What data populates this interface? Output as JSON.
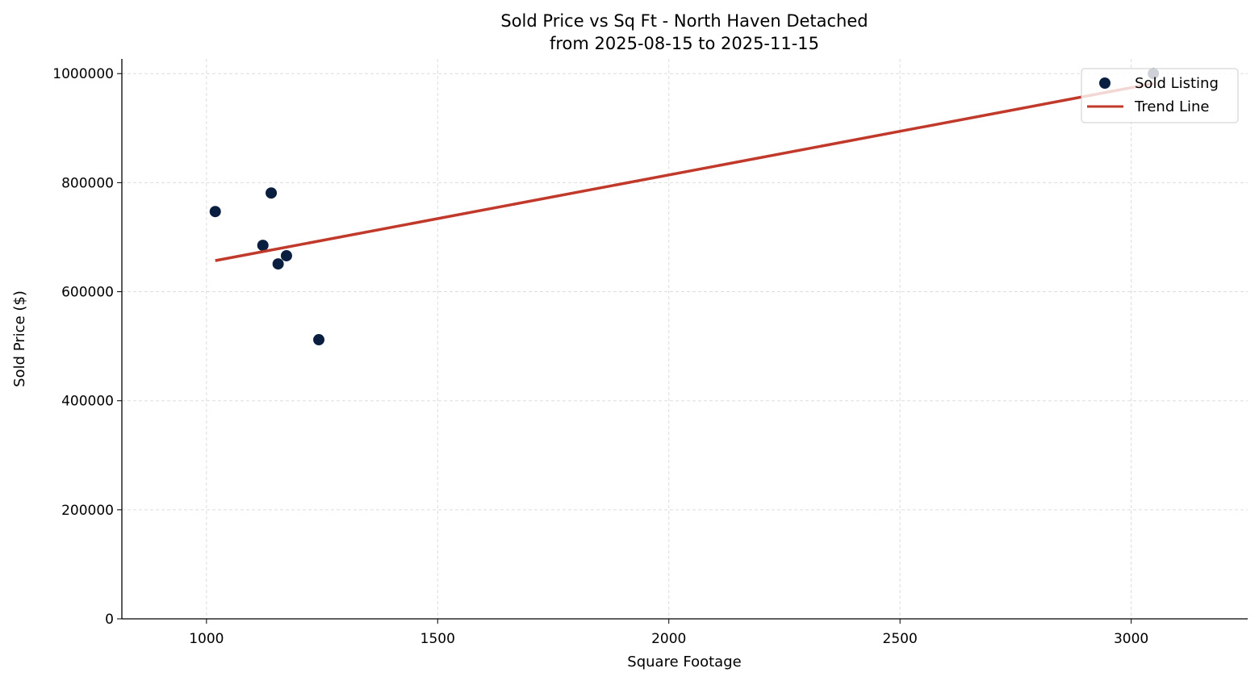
{
  "chart_data": {
    "type": "scatter",
    "title": "Sold Price vs Sq Ft - North Haven Detached",
    "subtitle": "from 2025-08-15 to 2025-11-15",
    "xlabel": "Square Footage",
    "ylabel": "Sold Price ($)",
    "xlim": [
      817,
      3252
    ],
    "ylim": [
      0,
      1027000
    ],
    "xticks": [
      1000,
      1500,
      2000,
      2500,
      3000
    ],
    "yticks": [
      0,
      200000,
      400000,
      600000,
      800000,
      1000000
    ],
    "grid": true,
    "legend_placement": "upper-right",
    "series": [
      {
        "name": "Sold Listing",
        "kind": "scatter",
        "color": "#0a1f3f",
        "points": [
          {
            "x": 1019,
            "y": 747000
          },
          {
            "x": 1140,
            "y": 781000
          },
          {
            "x": 1122,
            "y": 685000
          },
          {
            "x": 1155,
            "y": 651000
          },
          {
            "x": 1173,
            "y": 666000
          },
          {
            "x": 1243,
            "y": 512000
          },
          {
            "x": 3048,
            "y": 1000000
          }
        ]
      },
      {
        "name": "Trend Line",
        "kind": "line",
        "color": "#c0392b",
        "points": [
          {
            "x": 1019,
            "y": 657000
          },
          {
            "x": 3048,
            "y": 982000
          }
        ]
      }
    ]
  }
}
